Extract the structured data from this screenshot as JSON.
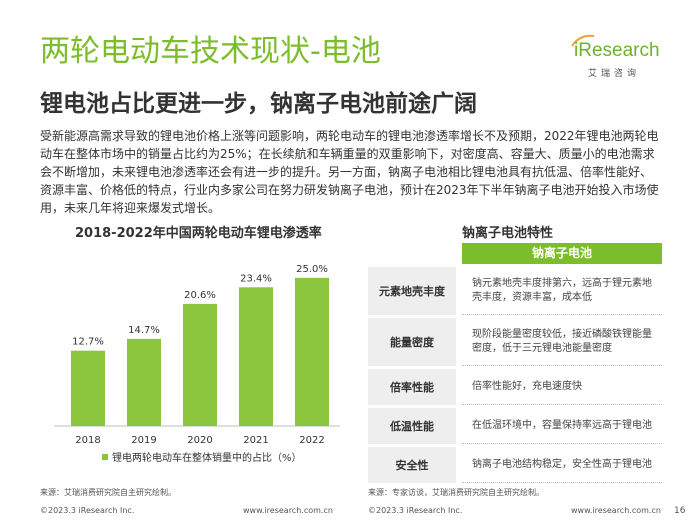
{
  "header": {
    "title": "两轮电动车技术现状-电池",
    "subtitle": "锂电池占比更进一步，钠离子电池前途广阔"
  },
  "logo": {
    "brand": "iResearch",
    "brand_cn": "艾瑞咨询"
  },
  "body_text": "受新能源高需求导致的锂电池价格上涨等问题影响，两轮电动车的锂电池渗透率增长不及预期，2022年锂电池两轮电动车在整体市场中的销量占比约为25%；在长续航和车辆重量的双重影响下，对密度高、容量大、质量小的电池需求会不断增加，未来锂电池渗透率还会有进一步的提升。另一方面，钠离子电池相比锂电池具有抗低温、倍率性能好、资源丰富、价格低的特点，行业内多家公司在努力研发钠离子电池，预计在2023年下半年钠离子电池开始投入市场使用，未来几年将迎来爆发式增长。",
  "chart_section": {
    "title": "2018-2022年中国两轮电动车锂电渗透率"
  },
  "chart_data": {
    "type": "bar",
    "title": "2018-2022年中国两轮电动车锂电渗透率",
    "categories": [
      "2018",
      "2019",
      "2020",
      "2021",
      "2022"
    ],
    "series": [
      {
        "name": "锂电两轮电动车在整体销量中的占比（%）",
        "values": [
          12.7,
          14.7,
          20.6,
          23.4,
          25.0
        ]
      }
    ],
    "value_labels": [
      "12.7%",
      "14.7%",
      "20.6%",
      "23.4%",
      "25.0%"
    ],
    "ylim": [
      0,
      28
    ],
    "grid": false,
    "legend_position": "bottom",
    "color": "#8cc63f"
  },
  "table_section": {
    "title": "钠离子电池特性",
    "header": "钠离子电池",
    "rows": [
      {
        "key": "元素地壳丰度",
        "value": "钠元素地壳丰度排第六，远高于锂元素地壳丰度，资源丰富，成本低"
      },
      {
        "key": "能量密度",
        "value": "现阶段能量密度较低，接近磷酸铁锂能量密度，低于三元锂电池能量密度"
      },
      {
        "key": "倍率性能",
        "value": "倍率性能好，充电速度快"
      },
      {
        "key": "低温性能",
        "value": "在低温环境中，容量保持率远高于锂电池"
      },
      {
        "key": "安全性",
        "value": "钠离子电池结构稳定，安全性高于锂电池"
      }
    ]
  },
  "sources": {
    "left": "来源：艾瑞消费研究院自主研究绘制。",
    "right": "来源：专家访谈，艾瑞消费研究院自主研究绘制。"
  },
  "footer": {
    "copyright": "©2023.3 iResearch Inc.",
    "url": "www.iresearch.com.cn",
    "page": "16"
  }
}
